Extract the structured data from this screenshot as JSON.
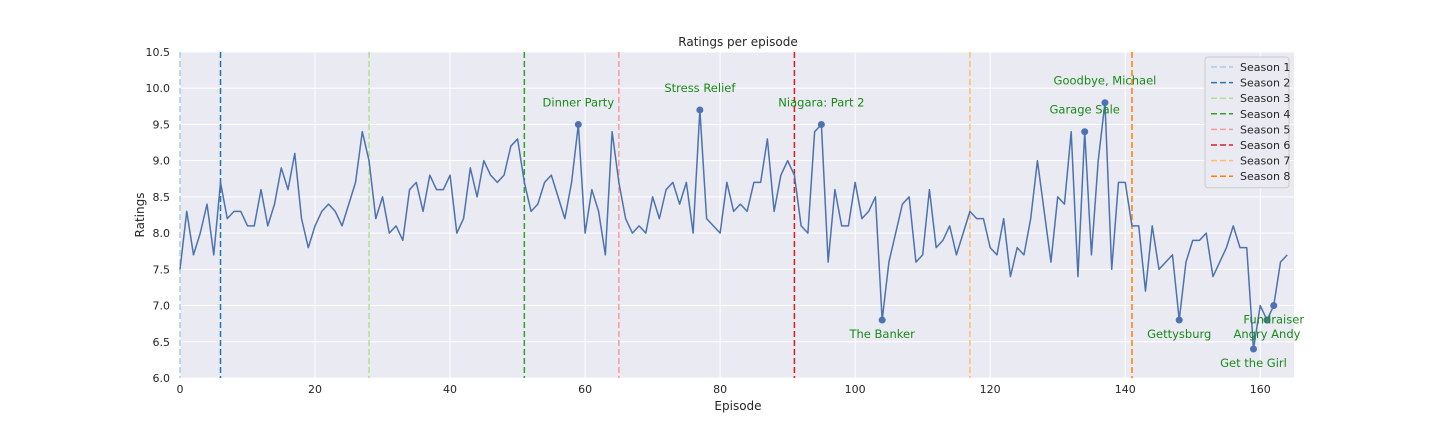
{
  "chart_data": {
    "type": "line",
    "title": "Ratings per episode",
    "xlabel": "Episode",
    "ylabel": "Ratings",
    "xlim": [
      0,
      165
    ],
    "ylim": [
      6.0,
      10.5
    ],
    "xticks": [
      0,
      20,
      40,
      60,
      80,
      100,
      120,
      140,
      160
    ],
    "yticks": [
      6.0,
      6.5,
      7.0,
      7.5,
      8.0,
      8.5,
      9.0,
      9.5,
      10.0,
      10.5
    ],
    "grid": true,
    "legend_position": "top-right",
    "line_color": "#4c72b0",
    "series": [
      {
        "values": [
          7.5,
          8.3,
          7.7,
          8.0,
          8.4,
          7.7,
          8.7,
          8.2,
          8.3,
          8.3,
          8.1,
          8.1,
          8.6,
          8.1,
          8.4,
          8.9,
          8.6,
          9.1,
          8.2,
          7.8,
          8.1,
          8.3,
          8.4,
          8.3,
          8.1,
          8.4,
          8.7,
          9.4,
          9.0,
          8.2,
          8.5,
          8.0,
          8.1,
          7.9,
          8.6,
          8.7,
          8.3,
          8.8,
          8.6,
          8.6,
          8.8,
          8.0,
          8.2,
          8.9,
          8.5,
          9.0,
          8.8,
          8.7,
          8.8,
          9.2,
          9.3,
          8.7,
          8.3,
          8.4,
          8.7,
          8.8,
          8.5,
          8.2,
          8.7,
          9.5,
          8.0,
          8.6,
          8.3,
          7.7,
          9.4,
          8.7,
          8.2,
          8.0,
          8.1,
          8.0,
          8.5,
          8.2,
          8.6,
          8.7,
          8.4,
          8.7,
          8.0,
          9.7,
          8.2,
          8.1,
          8.0,
          8.7,
          8.3,
          8.4,
          8.3,
          8.7,
          8.7,
          9.3,
          8.3,
          8.8,
          9.0,
          8.8,
          8.1,
          8.0,
          9.4,
          9.5,
          7.6,
          8.6,
          8.1,
          8.1,
          8.7,
          8.2,
          8.3,
          8.5,
          6.8,
          7.6,
          8.0,
          8.4,
          8.5,
          7.6,
          7.7,
          8.6,
          7.8,
          7.9,
          8.1,
          7.7,
          8.0,
          8.3,
          8.2,
          8.2,
          7.8,
          7.7,
          8.2,
          7.4,
          7.8,
          7.7,
          8.2,
          9.0,
          8.3,
          7.6,
          8.5,
          8.4,
          9.4,
          7.4,
          9.4,
          7.7,
          9.0,
          9.8,
          7.5,
          8.7,
          8.7,
          8.1,
          8.1,
          7.2,
          8.1,
          7.5,
          7.6,
          7.7,
          6.8,
          7.6,
          7.9,
          7.9,
          8.0,
          7.4,
          7.6,
          7.8,
          8.1,
          7.8,
          7.8,
          6.4,
          7.0,
          6.8,
          7.0,
          7.6,
          7.7
        ]
      }
    ],
    "season_lines": [
      {
        "name": "Season 1",
        "x": 0,
        "color": "#a6cee3"
      },
      {
        "name": "Season 2",
        "x": 6,
        "color": "#1f78b4"
      },
      {
        "name": "Season 3",
        "x": 28,
        "color": "#b2df8a"
      },
      {
        "name": "Season 4",
        "x": 51,
        "color": "#33a02c"
      },
      {
        "name": "Season 5",
        "x": 65,
        "color": "#fb9a99"
      },
      {
        "name": "Season 6",
        "x": 91,
        "color": "#e31a1c"
      },
      {
        "name": "Season 7",
        "x": 117,
        "color": "#fdbf6f"
      },
      {
        "name": "Season 8",
        "x": 141,
        "color": "#ff7f00"
      }
    ],
    "annotations": [
      {
        "label": "Dinner Party",
        "x": 59,
        "y": 9.5,
        "pos": "above"
      },
      {
        "label": "Stress Relief",
        "x": 77,
        "y": 9.7,
        "pos": "above"
      },
      {
        "label": "Niagara: Part 2",
        "x": 95,
        "y": 9.5,
        "pos": "above"
      },
      {
        "label": "Garage Sale",
        "x": 134,
        "y": 9.4,
        "pos": "above"
      },
      {
        "label": "Goodbye, Michael",
        "x": 137,
        "y": 9.8,
        "pos": "above"
      },
      {
        "label": "The Banker",
        "x": 104,
        "y": 6.8,
        "pos": "below"
      },
      {
        "label": "Gettysburg",
        "x": 148,
        "y": 6.8,
        "pos": "below"
      },
      {
        "label": "Get the Girl",
        "x": 159,
        "y": 6.4,
        "pos": "below"
      },
      {
        "label": "Angry Andy",
        "x": 161,
        "y": 6.8,
        "pos": "below"
      },
      {
        "label": "Fundraiser",
        "x": 162,
        "y": 7.0,
        "pos": "below"
      }
    ]
  }
}
